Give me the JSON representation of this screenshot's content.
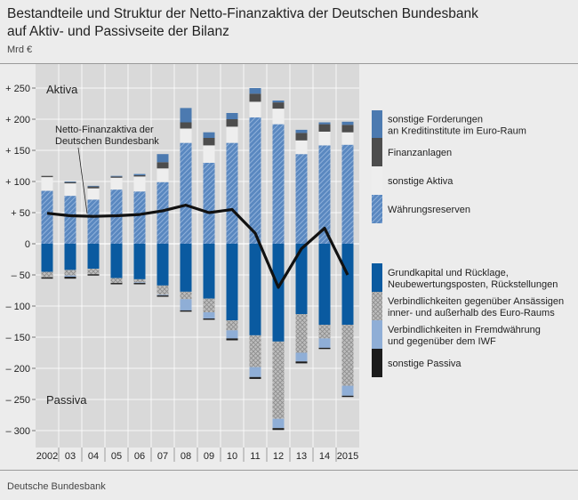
{
  "header": {
    "title_line1": "Bestandteile und Struktur der Netto-Finanzaktiva der Deutschen Bundesbank",
    "title_line2": "auf Aktiv- und Passivseite der Bilanz",
    "unit": "Mrd €"
  },
  "footer": {
    "source": "Deutsche Bundesbank"
  },
  "colors": {
    "plot_bg": "#d9d9d9",
    "waehrungsreserven": "#4f7fb8",
    "sonstige_aktiva": "#eeeeee",
    "finanzanlagen": "#4d4d4d",
    "sonstige_forderungen": "#4c7ab0",
    "grundkapital": "#0a5aa0",
    "verbindlichkeiten_ansaessige": "#bdbdbd",
    "fremdwaehrung": "#8faed6",
    "sonstige_passiva": "#1c1c1c",
    "line": "#111111"
  },
  "chart_data": {
    "type": "bar",
    "stacked": true,
    "ylim": [
      -310,
      255
    ],
    "yticks": [
      250,
      200,
      150,
      100,
      50,
      0,
      -50,
      -100,
      -150,
      -200,
      -250,
      -300
    ],
    "ytick_labels": [
      "+ 250",
      "+ 200",
      "+ 150",
      "+ 100",
      "+ 50",
      "0",
      "– 50",
      "– 100",
      "– 150",
      "– 200",
      "– 250",
      "– 300"
    ],
    "categories": [
      "2002",
      "03",
      "04",
      "05",
      "06",
      "07",
      "08",
      "09",
      "10",
      "11",
      "12",
      "13",
      "14",
      "2015"
    ],
    "side_labels": {
      "top": "Aktiva",
      "bottom": "Passiva"
    },
    "annotation": {
      "line1": "Netto-Finanzaktiva der",
      "line2": "Deutschen Bundesbank"
    },
    "legend_assets": [
      {
        "key": "sonstige_forderungen",
        "label1": "sonstige Forderungen",
        "label2": "an Kreditinstitute im Euro-Raum"
      },
      {
        "key": "finanzanlagen",
        "label1": "Finanzanlagen",
        "label2": ""
      },
      {
        "key": "sonstige_aktiva",
        "label1": "sonstige Aktiva",
        "label2": ""
      },
      {
        "key": "waehrungsreserven",
        "label1": "Währungsreserven",
        "label2": ""
      }
    ],
    "legend_liabilities": [
      {
        "key": "grundkapital",
        "label1": "Grundkapital und Rücklage,",
        "label2": "Neubewertungsposten, Rückstellungen"
      },
      {
        "key": "verbindlichkeiten_ansaessige",
        "label1": "Verbindlichkeiten gegenüber Ansässigen",
        "label2": "inner- und außerhalb des Euro-Raums"
      },
      {
        "key": "fremdwaehrung",
        "label1": "Verbindlichkeiten in Fremdwährung",
        "label2": "und gegenüber dem IWF"
      },
      {
        "key": "sonstige_passiva",
        "label1": "sonstige Passiva",
        "label2": ""
      }
    ],
    "assets": [
      {
        "name": "Währungsreserven",
        "key": "waehrungsreserven",
        "values": [
          85,
          77,
          71,
          87,
          84,
          99,
          162,
          130,
          162,
          203,
          192,
          144,
          158,
          159
        ]
      },
      {
        "name": "sonstige Aktiva",
        "key": "sonstige_aktiva",
        "values": [
          22,
          20,
          18,
          19,
          24,
          22,
          23,
          28,
          26,
          25,
          25,
          22,
          22,
          20
        ]
      },
      {
        "name": "Finanzanlagen",
        "key": "finanzanlagen",
        "values": [
          2,
          2,
          3,
          2,
          2,
          10,
          10,
          12,
          12,
          13,
          10,
          12,
          12,
          12
        ]
      },
      {
        "name": "sonstige Forderungen an Kreditinstitute im Euro-Raum",
        "key": "sonstige_forderungen",
        "values": [
          0,
          1,
          1,
          1,
          2,
          13,
          23,
          9,
          10,
          9,
          3,
          5,
          3,
          5
        ]
      }
    ],
    "liabilities": [
      {
        "name": "Grundkapital und Rücklage, Neubewertungsposten, Rückstellungen",
        "key": "grundkapital",
        "values": [
          -45,
          -42,
          -40,
          -55,
          -57,
          -67,
          -77,
          -88,
          -123,
          -147,
          -157,
          -113,
          -130,
          -130
        ]
      },
      {
        "name": "Verbindlichkeiten gegenüber Ansässigen inner- und außerhalb des Euro-Raums",
        "key": "verbindlichkeiten_ansaessige",
        "values": [
          -9,
          -9,
          -9,
          -8,
          -5,
          -15,
          -12,
          -22,
          -16,
          -51,
          -124,
          -62,
          -22,
          -98
        ]
      },
      {
        "name": "Verbindlichkeiten in Fremdwährung und gegenüber dem IWF",
        "key": "fremdwaehrung",
        "values": [
          0,
          -2,
          0,
          0,
          -1,
          -1,
          -18,
          -10,
          -13,
          -16,
          -15,
          -14,
          -15,
          -16
        ]
      },
      {
        "name": "sonstige Passiva",
        "key": "sonstige_passiva",
        "values": [
          -2,
          -3,
          -2,
          -2,
          -2,
          -2,
          -2,
          -2,
          -3,
          -3,
          -3,
          -3,
          -2,
          -2
        ]
      }
    ],
    "line": {
      "name": "Netto-Finanzaktiva der Deutschen Bundesbank",
      "values": [
        49,
        45,
        44,
        45,
        47,
        53,
        62,
        50,
        55,
        17,
        -70,
        -8,
        25,
        -50
      ]
    }
  }
}
